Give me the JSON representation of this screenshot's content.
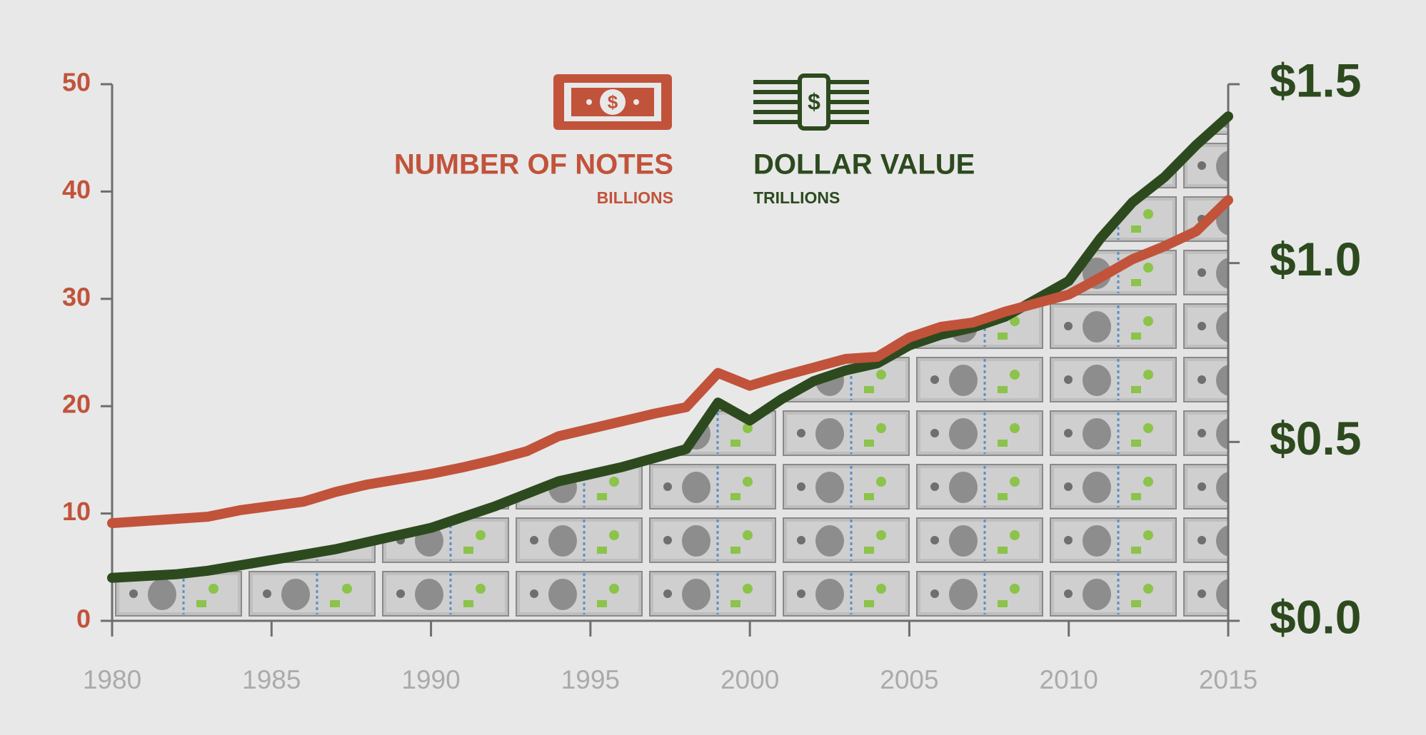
{
  "chart_data": {
    "type": "line",
    "x": [
      1980,
      1981,
      1982,
      1983,
      1984,
      1985,
      1986,
      1987,
      1988,
      1989,
      1990,
      1991,
      1992,
      1993,
      1994,
      1995,
      1996,
      1997,
      1998,
      1999,
      2000,
      2001,
      2002,
      2003,
      2004,
      2005,
      2006,
      2007,
      2008,
      2009,
      2010,
      2011,
      2012,
      2013,
      2014,
      2015
    ],
    "series": [
      {
        "name": "NUMBER OF NOTES",
        "unit": "BILLIONS",
        "color": "#c1533b",
        "values": [
          9.1,
          9.3,
          9.5,
          9.7,
          10.3,
          10.7,
          11.1,
          12.0,
          12.7,
          13.2,
          13.7,
          14.3,
          15.0,
          15.8,
          17.2,
          17.9,
          18.6,
          19.3,
          19.9,
          23.1,
          21.9,
          22.8,
          23.6,
          24.4,
          24.6,
          26.4,
          27.4,
          27.8,
          28.8,
          29.6,
          30.4,
          32.0,
          33.7,
          34.9,
          36.3,
          39.2
        ]
      },
      {
        "name": "DOLLAR VALUE",
        "unit": "TRILLIONS",
        "color": "#2d4a1f",
        "axis": "y2",
        "values": [
          0.12,
          0.125,
          0.13,
          0.14,
          0.155,
          0.17,
          0.185,
          0.2,
          0.22,
          0.24,
          0.26,
          0.29,
          0.32,
          0.355,
          0.39,
          0.41,
          0.43,
          0.455,
          0.48,
          0.61,
          0.56,
          0.62,
          0.67,
          0.7,
          0.72,
          0.77,
          0.8,
          0.82,
          0.85,
          0.9,
          0.95,
          1.07,
          1.17,
          1.24,
          1.33,
          1.41
        ]
      }
    ],
    "xlim": [
      1980,
      2015
    ],
    "xticks": [
      1980,
      1985,
      1990,
      1995,
      2000,
      2005,
      2010,
      2015
    ],
    "ylim": [
      0,
      50
    ],
    "yticks": [
      0,
      10,
      20,
      30,
      40,
      50
    ],
    "y2lim": [
      0,
      1.5
    ],
    "y2ticks": [
      {
        "value": 0,
        "label": "$0.0"
      },
      {
        "value": 0.5,
        "label": "$0.5"
      },
      {
        "value": 1,
        "label": "$1.0"
      },
      {
        "value": 1.5,
        "label": "$1.5"
      }
    ]
  }
}
